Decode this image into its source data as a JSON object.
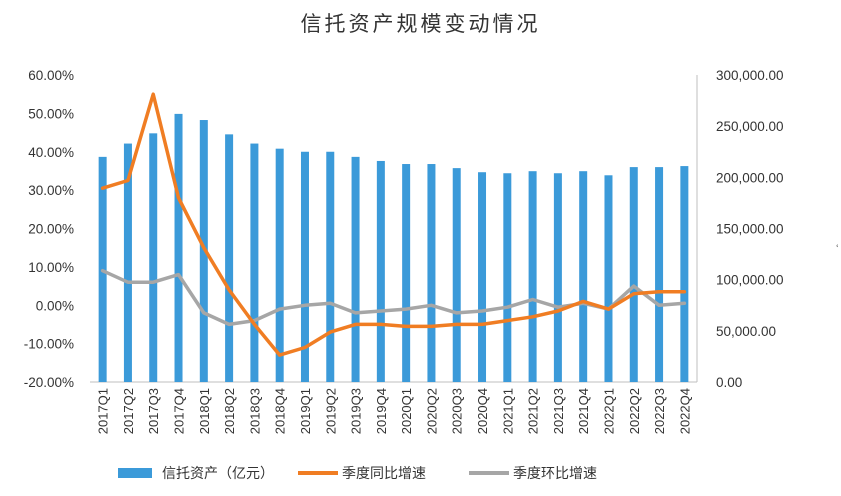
{
  "chart_data": {
    "type": "bar",
    "title": "信托资产规模变动情况",
    "categories": [
      "2017Q1",
      "2017Q2",
      "2017Q3",
      "2017Q4",
      "2018Q1",
      "2018Q2",
      "2018Q3",
      "2018Q4",
      "2019Q1",
      "2019Q2",
      "2019Q3",
      "2019Q4",
      "2020Q1",
      "2020Q2",
      "2020Q3",
      "2020Q4",
      "2021Q1",
      "2021Q2",
      "2021Q3",
      "2021Q4",
      "2022Q1",
      "2022Q2",
      "2022Q3",
      "2022Q4"
    ],
    "left_axis": {
      "ylim": [
        -20,
        60
      ],
      "ticks": [
        -20,
        -10,
        0,
        10,
        20,
        30,
        40,
        50,
        60
      ],
      "tick_labels": [
        "-20.00%",
        "-10.00%",
        "0.00%",
        "10.00%",
        "20.00%",
        "30.00%",
        "40.00%",
        "50.00%",
        "60.00%"
      ]
    },
    "right_axis": {
      "ylim": [
        0,
        300000
      ],
      "ticks": [
        0,
        50000,
        100000,
        150000,
        200000,
        250000,
        300000
      ],
      "tick_labels": [
        "0.00",
        "50,000.00",
        "100,000.00",
        "150,000.00",
        "200,000.00",
        "250,000.00",
        "300,000.00"
      ]
    },
    "series": [
      {
        "name": "信托资产（亿元）",
        "type": "bar",
        "axis": "right",
        "color": "#3b9ad9",
        "values": [
          220000,
          233000,
          243000,
          262000,
          256000,
          242000,
          233000,
          228000,
          225000,
          225000,
          220000,
          216000,
          213000,
          213000,
          209000,
          205000,
          204000,
          206000,
          204000,
          206000,
          202000,
          210000,
          210000,
          211000
        ]
      },
      {
        "name": "季度同比增速",
        "type": "line",
        "axis": "left",
        "color": "#f07d23",
        "values": [
          30.5,
          32.5,
          55.0,
          28.0,
          15.0,
          4.0,
          -5.0,
          -13.0,
          -11.0,
          -7.0,
          -5.0,
          -5.0,
          -5.5,
          -5.5,
          -5.0,
          -5.0,
          -4.0,
          -3.0,
          -1.5,
          1.0,
          -1.0,
          3.0,
          3.5,
          3.5
        ]
      },
      {
        "name": "季度环比增速",
        "type": "line",
        "axis": "left",
        "color": "#a6a6a6",
        "values": [
          9.0,
          6.0,
          6.0,
          8.0,
          -2.0,
          -5.0,
          -4.0,
          -1.0,
          0.0,
          0.5,
          -2.0,
          -1.5,
          -1.0,
          0.0,
          -2.0,
          -1.5,
          -0.5,
          1.5,
          -0.5,
          0.5,
          -1.0,
          5.0,
          0.0,
          0.5
        ]
      }
    ],
    "grid": false,
    "legend_position": "bottom"
  },
  "side_mark": "ʿ"
}
